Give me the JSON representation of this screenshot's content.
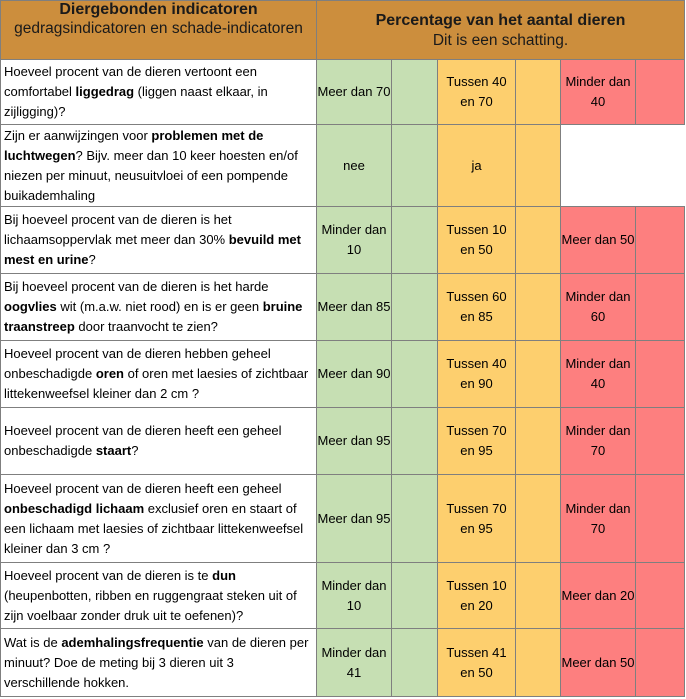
{
  "header": {
    "left_title": "Diergebonden indicatoren",
    "left_subtitle": "gedragsindicatoren en schade-indicatoren",
    "right_title": "Percentage van het aantal dieren",
    "right_subtitle": "Dit is een schatting."
  },
  "rows": [
    {
      "q_pre": "Hoeveel procent van de dieren vertoont een comfortabel ",
      "q_bold": "liggedrag",
      "q_post": " (liggen naast elkaar, in zijligging)?",
      "green": "Meer dan 70",
      "yellow": "Tussen 40 en 70",
      "red": "Minder dan 40"
    },
    {
      "q_pre": "Zijn er aanwijzingen voor ",
      "q_bold": "problemen met de luchtwegen",
      "q_post": "? Bijv. meer dan 10 keer hoesten en/of niezen per minuut, neusuitvloei of een pompende buikademhaling",
      "green": "nee",
      "yellow": "ja",
      "red": ""
    },
    {
      "q_pre": "Bij hoeveel procent van de dieren is het lichaamsoppervlak met meer dan 30% ",
      "q_bold": "bevuild met mest en urine",
      "q_post": "?",
      "green": "Minder dan 10",
      "yellow": "Tussen 10 en 50",
      "red": "Meer dan 50"
    },
    {
      "q_pre": "Bij hoeveel procent van de dieren is het harde ",
      "q_bold": "oogvlies",
      "q_post": " wit (m.a.w. niet rood) en is er geen ",
      "q_bold2": "bruine traanstreep",
      "q_post2": " door traanvocht te zien?",
      "green": "Meer dan 85",
      "yellow": "Tussen 60 en 85",
      "red": "Minder dan 60"
    },
    {
      "q_pre": "Hoeveel procent van de dieren hebben geheel onbeschadigde ",
      "q_bold": "oren",
      "q_post": " of oren met laesies of zichtbaar littekenweefsel kleiner dan 2 cm ?",
      "green": "Meer dan 90",
      "yellow": "Tussen 40 en 90",
      "red": "Minder dan 40"
    },
    {
      "q_pre": "Hoeveel procent van de dieren heeft een geheel onbeschadigde ",
      "q_bold": "staart",
      "q_post": "?",
      "green": "Meer dan 95",
      "yellow": "Tussen 70 en 95",
      "red": "Minder dan 70"
    },
    {
      "q_pre": "Hoeveel procent van de dieren heeft een geheel ",
      "q_bold": "onbeschadigd lichaam",
      "q_post": " exclusief oren en staart of een lichaam met laesies of zichtbaar littekenweefsel kleiner dan 3 cm ?",
      "green": "Meer dan 95",
      "yellow": "Tussen 70 en 95",
      "red": "Minder dan 70"
    },
    {
      "q_pre": "Hoeveel procent van de dieren is te ",
      "q_bold": "dun",
      "q_post": " (heupenbotten, ribben en ruggengraat steken uit of zijn voelbaar zonder druk uit te oefenen)?",
      "green": "Minder dan 10",
      "yellow": "Tussen 10 en 20",
      "red": "Meer dan 20"
    },
    {
      "q_pre": "Wat is de ",
      "q_bold": "ademhalingsfrequentie",
      "q_post": " van de dieren per minuut? Doe de meting bij 3 dieren uit 3 verschillende hokken.",
      "green": "Minder dan 41",
      "yellow": "Tussen 41 en 50",
      "red": "Meer dan 50"
    }
  ],
  "colors": {
    "header_bg": "#cc8e3d",
    "green": "#c6dfb3",
    "yellow": "#fdcf6e",
    "red": "#fd7f7f"
  }
}
